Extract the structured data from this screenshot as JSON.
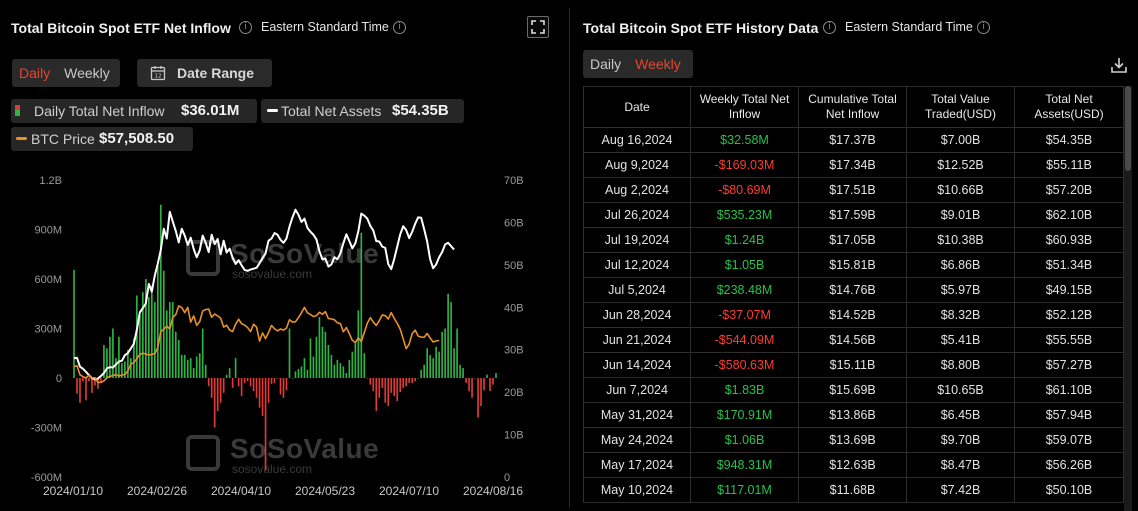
{
  "left": {
    "title": "Total Bitcoin Spot ETF Net Inflow",
    "timezone": "Eastern Standard Time",
    "tabs": [
      "Daily",
      "Weekly"
    ],
    "active_tab": "Daily",
    "date_range_label": "Date Range",
    "legend": {
      "inflow_label": "Daily Total Net Inflow",
      "inflow_value": "$36.01M",
      "assets_label": "Total Net Assets",
      "assets_value": "$54.35B",
      "price_label": "BTC Price",
      "price_value": "$57,508.50"
    },
    "watermark": {
      "name": "SoSoValue",
      "url": "sosovalue.com"
    }
  },
  "chart_data": {
    "type": "bar",
    "title": "",
    "left_axis_ticks": [
      "1.2B",
      "900M",
      "600M",
      "300M",
      "0",
      "-300M",
      "-600M"
    ],
    "right_axis_ticks": [
      "70B",
      "60B",
      "50B",
      "40B",
      "30B",
      "20B",
      "10B",
      "0"
    ],
    "x_tick_labels": [
      "2024/01/10",
      "2024/02/26",
      "2024/04/10",
      "2024/05/23",
      "2024/07/10",
      "2024/08/16"
    ],
    "ylim_left": [
      -600,
      1200
    ],
    "ylim_left_unit": "M",
    "ylim_right": [
      0,
      70
    ],
    "ylim_right_unit": "B",
    "grid": false,
    "colors": {
      "positive": "#2fb344",
      "negative": "#e03b36",
      "assets": "#ffffff",
      "price": "#e8912a"
    },
    "series": [
      {
        "name": "Daily Total Net Inflow",
        "unit": "M USD",
        "values": [
          655,
          -95,
          -150,
          -20,
          -135,
          -20,
          -90,
          -45,
          -65,
          -30,
          200,
          180,
          250,
          300,
          120,
          250,
          90,
          100,
          170,
          120,
          240,
          500,
          380,
          520,
          600,
          490,
          560,
          460,
          680,
          1050,
          650,
          410,
          460,
          460,
          280,
          230,
          140,
          140,
          110,
          120,
          60,
          130,
          150,
          300,
          80,
          -50,
          -120,
          -300,
          -200,
          -150,
          -90,
          20,
          60,
          -60,
          120,
          -50,
          -110,
          -30,
          -20,
          -50,
          -80,
          -120,
          -180,
          -230,
          -560,
          -150,
          -35,
          -30,
          0,
          -100,
          -120,
          -75,
          300,
          0,
          40,
          55,
          70,
          120,
          50,
          240,
          130,
          250,
          370,
          310,
          280,
          200,
          140,
          80,
          110,
          90,
          70,
          30,
          110,
          160,
          220,
          410,
          880,
          150,
          0,
          -40,
          -80,
          -200,
          -120,
          -60,
          -150,
          -170,
          -90,
          -110,
          -140,
          -85,
          -60,
          -50,
          -30,
          -30,
          -20,
          0,
          50,
          80,
          180,
          140,
          120,
          190,
          160,
          280,
          300,
          510,
          460,
          180,
          300,
          80,
          60,
          -30,
          -80,
          -120,
          0,
          -240,
          -170,
          -75,
          20,
          -80,
          -40,
          30
        ]
      },
      {
        "name": "Total Net Assets",
        "unit": "B USD",
        "values": [
          28.0,
          28.1,
          26.0,
          25.5,
          24.8,
          24.0,
          23.3,
          23.0,
          23.2,
          23.8,
          24.5,
          25.6,
          25.9,
          25.8,
          26.5,
          27.2,
          27.4,
          28.7,
          29.2,
          30.3,
          31.4,
          34.7,
          38.8,
          39.8,
          40.9,
          45.5,
          43.7,
          47.5,
          50.3,
          53.5,
          58.5,
          56.2,
          62.5,
          60.2,
          58.0,
          55.3,
          58.5,
          56.9,
          54.7,
          56.4,
          53.7,
          51.8,
          53.4,
          56.9,
          55.2,
          53.0,
          57.1,
          54.9,
          56.1,
          52.5,
          55.7,
          52.9,
          53.8,
          51.7,
          50.2,
          51.1,
          49.9,
          48.8,
          48.6,
          48.9,
          49.1,
          49.3,
          50.4,
          51.6,
          52.7,
          55.7,
          56.2,
          57.5,
          57.1,
          55.9,
          55.2,
          56.2,
          59.0,
          61.2,
          63.0,
          61.8,
          60.1,
          60.9,
          58.7,
          57.8,
          57.1,
          56.0,
          53.2,
          51.3,
          51.5,
          49.6,
          50.1,
          51.8,
          51.3,
          52.7,
          55.1,
          57.2,
          55.6,
          53.9,
          55.1,
          57.9,
          62.1,
          61.6,
          60.9,
          59.2,
          58.1,
          55.6,
          55.5,
          54.3,
          54.0,
          50.2,
          49.0,
          51.4,
          54.3,
          57.2,
          59.1,
          58.2,
          56.3,
          57.8,
          59.7,
          61.2,
          61.1,
          58.4,
          55.5,
          51.3,
          49.2,
          50.1,
          51.8,
          53.0,
          54.8,
          55.2,
          54.4,
          53.6
        ]
      },
      {
        "name": "BTC Price",
        "unit": "K USD",
        "values": [
          46.5,
          46.8,
          43.0,
          42.2,
          41.7,
          42.8,
          41.7,
          41.8,
          39.8,
          39.8,
          40.5,
          41.8,
          42.3,
          42.7,
          43.1,
          42.5,
          42.9,
          43.2,
          44.6,
          47.6,
          48.1,
          49.8,
          51.6,
          52.1,
          51.8,
          51.3,
          51.6,
          51.9,
          54.5,
          61.2,
          62.2,
          63.5,
          62.3,
          67.1,
          68.3,
          72.0,
          71.3,
          69.2,
          71.4,
          65.2,
          67.8,
          63.8,
          65.4,
          69.9,
          70.5,
          70.7,
          67.2,
          68.6,
          67.8,
          66.8,
          63.1,
          63.9,
          61.9,
          61.2,
          64.3,
          66.4,
          64.5,
          63.9,
          62.9,
          61.2,
          64.3,
          63.1,
          57.2,
          60.6,
          58.3,
          60.8,
          63.8,
          62.4,
          61.5,
          62.3,
          61.8,
          62.7,
          66.2,
          65.2,
          65.3,
          67.1,
          69.1,
          71.4,
          69.1,
          68.4,
          67.5,
          67.9,
          69.3,
          68.5,
          69.6,
          66.7,
          66.5,
          66.2,
          64.9,
          64.6,
          61.1,
          62.9,
          60.3,
          57.5,
          56.6,
          58.6,
          57.0,
          60.8,
          64.7,
          67.1,
          65.2,
          63.8,
          65.8,
          68.2,
          67.9,
          66.5,
          69.2,
          66.7,
          64.7,
          62.2,
          58.1,
          54.0,
          56.0,
          60.4,
          61.8,
          59.3,
          58.9,
          58.8,
          60.4,
          58.5,
          56.8,
          57.3,
          57.5
        ]
      }
    ]
  },
  "right": {
    "title": "Total Bitcoin Spot ETF History Data",
    "timezone": "Eastern Standard Time",
    "tabs": [
      "Daily",
      "Weekly"
    ],
    "active_tab": "Weekly",
    "columns": [
      "Date",
      "Weekly Total Net Inflow",
      "Cumulative Total Net Inflow",
      "Total Value Traded(USD)",
      "Total Net Assets(USD)"
    ],
    "rows": [
      {
        "date": "Aug 16,2024",
        "weekly": "$32.58M",
        "cumulative": "$17.37B",
        "traded": "$7.00B",
        "assets": "$54.35B",
        "sign": "pos"
      },
      {
        "date": "Aug 9,2024",
        "weekly": "-$169.03M",
        "cumulative": "$17.34B",
        "traded": "$12.52B",
        "assets": "$55.11B",
        "sign": "neg"
      },
      {
        "date": "Aug 2,2024",
        "weekly": "-$80.69M",
        "cumulative": "$17.51B",
        "traded": "$10.66B",
        "assets": "$57.20B",
        "sign": "neg"
      },
      {
        "date": "Jul 26,2024",
        "weekly": "$535.23M",
        "cumulative": "$17.59B",
        "traded": "$9.01B",
        "assets": "$62.10B",
        "sign": "pos"
      },
      {
        "date": "Jul 19,2024",
        "weekly": "$1.24B",
        "cumulative": "$17.05B",
        "traded": "$10.38B",
        "assets": "$60.93B",
        "sign": "pos"
      },
      {
        "date": "Jul 12,2024",
        "weekly": "$1.05B",
        "cumulative": "$15.81B",
        "traded": "$6.86B",
        "assets": "$51.34B",
        "sign": "pos"
      },
      {
        "date": "Jul 5,2024",
        "weekly": "$238.48M",
        "cumulative": "$14.76B",
        "traded": "$5.97B",
        "assets": "$49.15B",
        "sign": "pos"
      },
      {
        "date": "Jun 28,2024",
        "weekly": "-$37.07M",
        "cumulative": "$14.52B",
        "traded": "$8.32B",
        "assets": "$52.12B",
        "sign": "neg"
      },
      {
        "date": "Jun 21,2024",
        "weekly": "-$544.09M",
        "cumulative": "$14.56B",
        "traded": "$5.41B",
        "assets": "$55.55B",
        "sign": "neg"
      },
      {
        "date": "Jun 14,2024",
        "weekly": "-$580.63M",
        "cumulative": "$15.11B",
        "traded": "$8.80B",
        "assets": "$57.27B",
        "sign": "neg"
      },
      {
        "date": "Jun 7,2024",
        "weekly": "$1.83B",
        "cumulative": "$15.69B",
        "traded": "$10.65B",
        "assets": "$61.10B",
        "sign": "pos"
      },
      {
        "date": "May 31,2024",
        "weekly": "$170.91M",
        "cumulative": "$13.86B",
        "traded": "$6.45B",
        "assets": "$57.94B",
        "sign": "pos"
      },
      {
        "date": "May 24,2024",
        "weekly": "$1.06B",
        "cumulative": "$13.69B",
        "traded": "$9.70B",
        "assets": "$59.07B",
        "sign": "pos"
      },
      {
        "date": "May 17,2024",
        "weekly": "$948.31M",
        "cumulative": "$12.63B",
        "traded": "$8.47B",
        "assets": "$56.26B",
        "sign": "pos"
      },
      {
        "date": "May 10,2024",
        "weekly": "$117.01M",
        "cumulative": "$11.68B",
        "traded": "$7.42B",
        "assets": "$50.10B",
        "sign": "pos"
      }
    ]
  }
}
